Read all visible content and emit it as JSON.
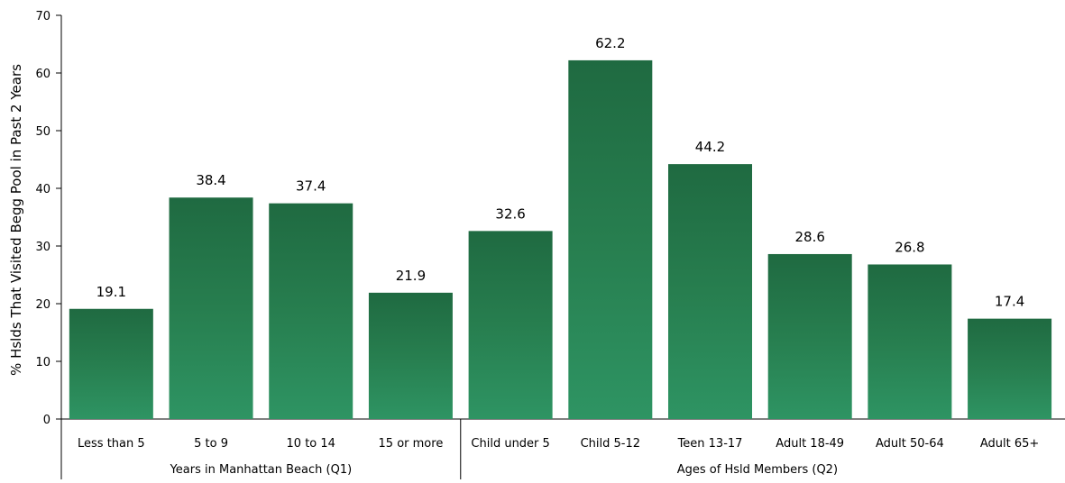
{
  "chart_data": {
    "type": "bar",
    "ylabel": "% Hslds That Visited Begg Pool in Past 2 Years",
    "ylim": [
      0,
      70
    ],
    "yticks": [
      0,
      10,
      20,
      30,
      40,
      50,
      60,
      70
    ],
    "grid": false,
    "legend": "none",
    "colors": {
      "bar_top": "#1f6a41",
      "bar_mid": "#277e4f",
      "bar_bottom": "#2e9463",
      "axis": "#000000"
    },
    "groups": [
      {
        "label": "Years in Manhattan Beach (Q1)",
        "categories": [
          "Less than 5",
          "5 to 9",
          "10 to 14",
          "15 or more"
        ],
        "values": [
          19.1,
          38.4,
          37.4,
          21.9
        ]
      },
      {
        "label": "Ages of Hsld Members (Q2)",
        "categories": [
          "Child under 5",
          "Child 5-12",
          "Teen 13-17",
          "Adult 18-49",
          "Adult 50-64",
          "Adult 65+"
        ],
        "values": [
          32.6,
          62.2,
          44.2,
          28.6,
          26.8,
          17.4
        ]
      }
    ]
  }
}
